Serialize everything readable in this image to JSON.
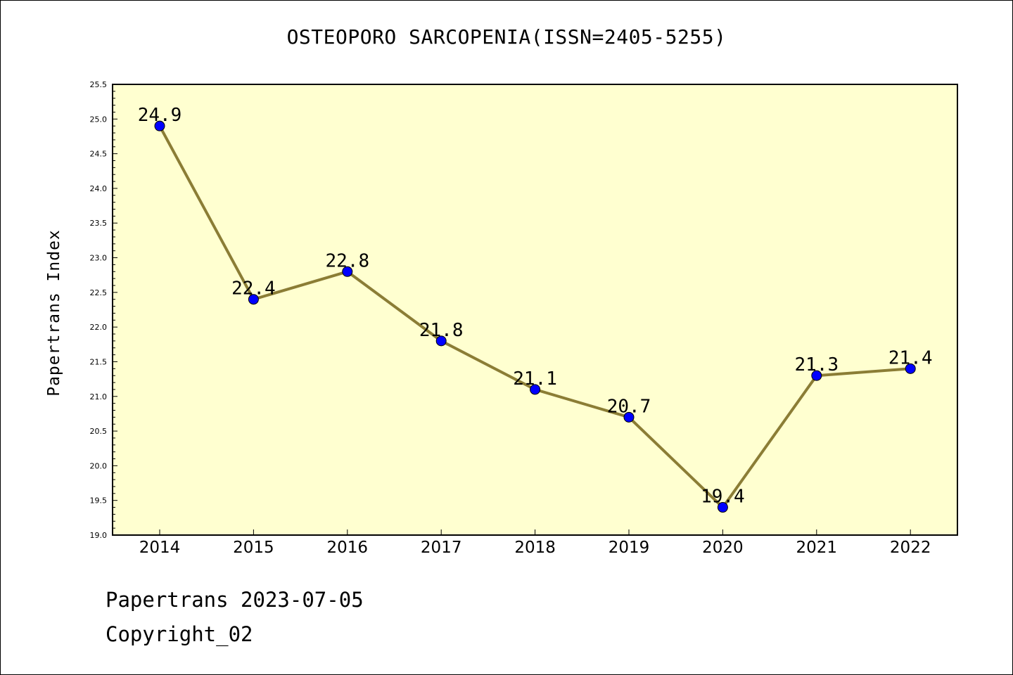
{
  "chart_data": {
    "type": "line",
    "title": "OSTEOPORO SARCOPENIA(ISSN=2405-5255)",
    "xlabel": "",
    "ylabel": "Papertrans Index",
    "categories": [
      "2014",
      "2015",
      "2016",
      "2017",
      "2018",
      "2019",
      "2020",
      "2021",
      "2022"
    ],
    "series": [
      {
        "values": [
          24.9,
          22.4,
          22.8,
          21.8,
          21.1,
          20.7,
          19.4,
          21.3,
          21.4
        ],
        "labels": [
          "24.9",
          "22.4",
          "22.8",
          "21.8",
          "21.1",
          "20.7",
          "19.4",
          "21.3",
          "21.4"
        ],
        "line_color": "#8B7D35",
        "marker_color": "#0000FF"
      }
    ],
    "ylim": [
      19.0,
      25.5
    ],
    "yticks": [
      "19.0",
      "19.5",
      "20.0",
      "20.5",
      "21.0",
      "21.5",
      "22.0",
      "22.5",
      "23.0",
      "23.5",
      "24.0",
      "24.5",
      "25.0",
      "25.5"
    ],
    "grid": false,
    "legend": "none",
    "plot_background": "#FFFFD0"
  },
  "footer": {
    "line1": "Papertrans 2023-07-05",
    "line2": "Copyright_02"
  }
}
